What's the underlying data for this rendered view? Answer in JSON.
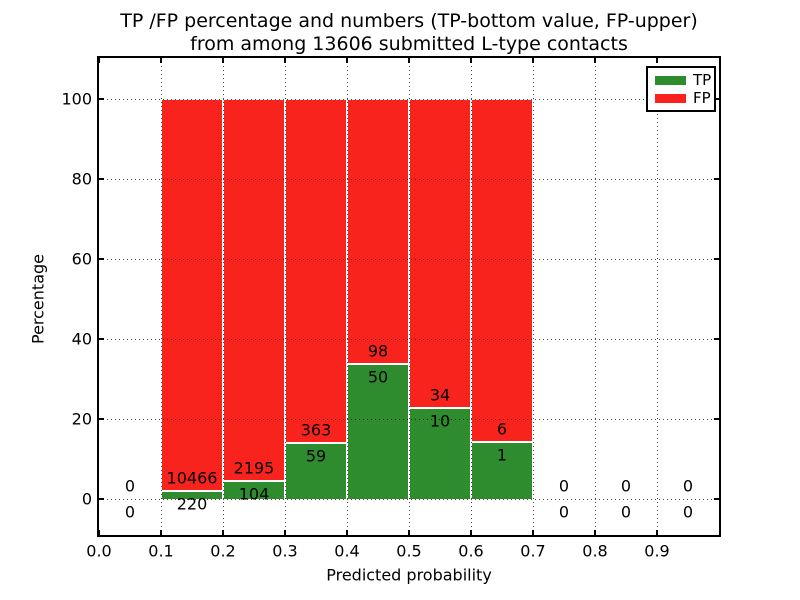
{
  "chart_data": {
    "type": "bar",
    "stacked": true,
    "normalized_to_percent": true,
    "title_line1": "TP /FP percentage and numbers (TP-bottom value, FP-upper)",
    "title_line2": "from among 13606 submitted L-type contacts",
    "xlabel": "Predicted probability",
    "ylabel": "Percentage",
    "x_tick_labels": [
      "0.0",
      "0.1",
      "0.2",
      "0.3",
      "0.4",
      "0.5",
      "0.6",
      "0.7",
      "0.8",
      "0.9"
    ],
    "x_tick_values": [
      0.0,
      0.1,
      0.2,
      0.3,
      0.4,
      0.5,
      0.6,
      0.7,
      0.8,
      0.9
    ],
    "y_tick_labels": [
      "0",
      "20",
      "40",
      "60",
      "80",
      "100"
    ],
    "y_tick_values": [
      0,
      20,
      40,
      60,
      80,
      100
    ],
    "xlim": [
      0.0,
      1.0
    ],
    "grid": "dotted, drawn above bars",
    "legend_position": "upper right",
    "legend": [
      {
        "label": "TP",
        "color": "#2e8b2e"
      },
      {
        "label": "FP",
        "color": "#f8231c"
      }
    ],
    "annotation_note": "TP-bottom value, FP-upper",
    "total_contacts": 13606,
    "bins": [
      {
        "x_start": 0.0,
        "x_end": 0.1,
        "tp": 0,
        "fp": 0
      },
      {
        "x_start": 0.1,
        "x_end": 0.2,
        "tp": 220,
        "fp": 10466
      },
      {
        "x_start": 0.2,
        "x_end": 0.3,
        "tp": 104,
        "fp": 2195
      },
      {
        "x_start": 0.3,
        "x_end": 0.4,
        "tp": 59,
        "fp": 363
      },
      {
        "x_start": 0.4,
        "x_end": 0.5,
        "tp": 50,
        "fp": 98
      },
      {
        "x_start": 0.5,
        "x_end": 0.6,
        "tp": 10,
        "fp": 34
      },
      {
        "x_start": 0.6,
        "x_end": 0.7,
        "tp": 1,
        "fp": 6
      },
      {
        "x_start": 0.7,
        "x_end": 0.8,
        "tp": 0,
        "fp": 0
      },
      {
        "x_start": 0.8,
        "x_end": 0.9,
        "tp": 0,
        "fp": 0
      },
      {
        "x_start": 0.9,
        "x_end": 1.0,
        "tp": 0,
        "fp": 0
      }
    ]
  }
}
